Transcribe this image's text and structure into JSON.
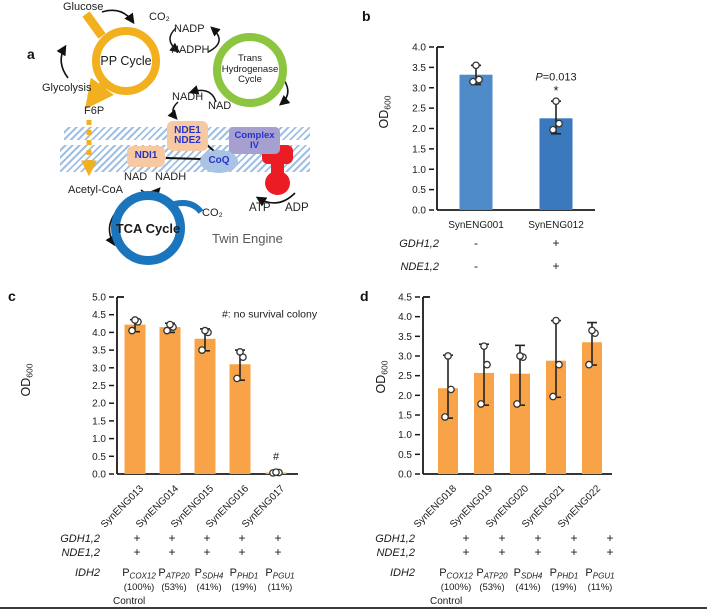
{
  "figure": {
    "panels": {
      "a": "a",
      "b": "b",
      "c": "c",
      "d": "d"
    },
    "bottom_rule_color": "#3a3a3a"
  },
  "diagram": {
    "labels": {
      "glucose": "Glucose",
      "co2_top": "CO₂",
      "pp_cycle": "PP Cycle",
      "glycolysis": "Glycolysis",
      "f6p": "F6P",
      "nadp": "NADP",
      "nadph": "NADPH",
      "trans_line1": "Trans",
      "trans_line2": "Hydrogenase",
      "trans_line3": "Cycle",
      "nadh_mid": "NADH",
      "nad_mid": "NAD",
      "nde1": "NDE1",
      "nde2": "NDE2",
      "ndi1": "NDI1",
      "complex_line1": "Complex",
      "complex_line2": "IV",
      "coq": "CoQ",
      "nad_tca": "NAD",
      "nadh_tca": "NADH",
      "acetyl_coa": "Acetyl-CoA",
      "tca_cycle": "TCA Cycle",
      "co2_tca": "CO₂",
      "atp": "ATP",
      "adp": "ADP",
      "twin_engine": "Twin Engine"
    },
    "colors": {
      "pp_ring": "#F2B01E",
      "green_ring": "#8CC540",
      "tca_ring": "#1B75BC",
      "peach_box": "#F6C9A2",
      "purple_box": "#A5A0D0",
      "coq_fill": "#A9C3E4",
      "box_text": "#2833CC",
      "atp_synthase_red": "#EC1C24",
      "membrane_hatch": "#9FC0E4",
      "twin_engine_text": "#58595B"
    }
  },
  "chart_data": [
    {
      "id": "panel-b",
      "type": "bar",
      "title": "",
      "ylabel": "OD",
      "ylabel_sub": "600",
      "ylim": [
        0,
        4.0
      ],
      "ytick_step": 0.5,
      "grid": false,
      "categories": [
        "SynENG001",
        "SynENG012"
      ],
      "values": [
        3.32,
        2.25
      ],
      "bar_colors": [
        "#4E8BC8",
        "#3A79BE"
      ],
      "points": [
        [
          3.15,
          3.2,
          3.55
        ],
        [
          1.97,
          2.12,
          2.67
        ]
      ],
      "error_low": [
        3.08,
        1.87
      ],
      "error_high": [
        3.55,
        2.67
      ],
      "annotations": [
        {
          "text": "P=0.013",
          "italic_first": true,
          "bar_index": 1,
          "y": 3.18,
          "size": 11
        },
        {
          "text": "*",
          "bar_index": 1,
          "y": 2.82,
          "size": 13
        }
      ],
      "genotype_rows": [
        {
          "label": "GDH1,2",
          "values": [
            "-",
            "+"
          ]
        },
        {
          "label": "NDE1,2",
          "values": [
            "-",
            "+"
          ]
        }
      ]
    },
    {
      "id": "panel-c",
      "type": "bar",
      "title": "",
      "ylabel": "OD",
      "ylabel_sub": "600",
      "ylim": [
        0,
        5.0
      ],
      "ytick_step": 0.5,
      "grid": false,
      "categories": [
        "SynENG013",
        "SynENG014",
        "SynENG015",
        "SynENG016",
        "SynENG017"
      ],
      "values": [
        4.22,
        4.15,
        3.82,
        3.1,
        0.04
      ],
      "bar_colors": [
        "#F8A347",
        "#F8A347",
        "#F8A347",
        "#F8A347",
        "#F8A347"
      ],
      "points": [
        [
          4.05,
          4.3,
          4.35
        ],
        [
          4.05,
          4.15,
          4.22
        ],
        [
          3.5,
          4.0,
          4.05
        ],
        [
          2.7,
          3.3,
          3.45
        ],
        [
          0.03,
          0.04,
          0.05
        ]
      ],
      "error_low": [
        4.02,
        4.0,
        3.48,
        2.65,
        null
      ],
      "error_high": [
        4.36,
        4.26,
        4.1,
        3.5,
        null
      ],
      "annotations": [
        {
          "text": "#: no survival colony",
          "x_frac": 0.58,
          "y": 4.42,
          "anchor": "start",
          "size": 10.5
        },
        {
          "text": "#",
          "bar_index": 4,
          "y": 0.4,
          "size": 11
        }
      ],
      "genotype_rows": [
        {
          "label": "GDH1,2",
          "values": [
            "+",
            "+",
            "+",
            "+",
            "+"
          ]
        },
        {
          "label": "NDE1,2",
          "values": [
            "+",
            "+",
            "+",
            "+",
            "+"
          ]
        },
        {
          "label": "IDH2",
          "promoters": [
            {
              "base": "P",
              "sub": "COX12",
              "pct": "(100%)",
              "note": "Control"
            },
            {
              "base": "P",
              "sub": "ATP20",
              "pct": "(53%)"
            },
            {
              "base": "P",
              "sub": "SDH4",
              "pct": "(41%)"
            },
            {
              "base": "P",
              "sub": "PHD1",
              "pct": "(19%)"
            },
            {
              "base": "P",
              "sub": "PGU1",
              "pct": "(11%)"
            }
          ]
        }
      ]
    },
    {
      "id": "panel-d",
      "type": "bar",
      "title": "",
      "ylabel": "OD",
      "ylabel_sub": "600",
      "ylim": [
        0,
        4.5
      ],
      "ytick_step": 0.5,
      "grid": false,
      "categories": [
        "SynENG018",
        "SynENG019",
        "SynENG020",
        "SynENG021",
        "SynENG022"
      ],
      "values": [
        2.18,
        2.57,
        2.55,
        2.88,
        3.35
      ],
      "bar_colors": [
        "#F8A347",
        "#F8A347",
        "#F8A347",
        "#F8A347",
        "#F8A347"
      ],
      "points": [
        [
          1.45,
          2.15,
          3.0
        ],
        [
          1.78,
          2.78,
          3.25
        ],
        [
          1.78,
          2.97,
          3.0
        ],
        [
          1.97,
          2.78,
          3.9
        ],
        [
          2.78,
          3.58,
          3.65
        ]
      ],
      "error_low": [
        1.42,
        1.75,
        1.75,
        1.95,
        2.77
      ],
      "error_high": [
        3.02,
        3.3,
        3.27,
        3.9,
        3.85
      ],
      "annotations": [],
      "genotype_rows": [
        {
          "label": "GDH1,2",
          "values": [
            "+",
            "+",
            "+",
            "+",
            "+"
          ]
        },
        {
          "label": "NDE1,2",
          "values": [
            "+",
            "+",
            "+",
            "+",
            "+"
          ]
        },
        {
          "label": "IDH2",
          "promoters": [
            {
              "base": "P",
              "sub": "COX12",
              "pct": "(100%)",
              "note": "Control"
            },
            {
              "base": "P",
              "sub": "ATP20",
              "pct": "(53%)"
            },
            {
              "base": "P",
              "sub": "SDH4",
              "pct": "(41%)"
            },
            {
              "base": "P",
              "sub": "PHD1",
              "pct": "(19%)"
            },
            {
              "base": "P",
              "sub": "PGU1",
              "pct": "(11%)"
            }
          ]
        }
      ]
    }
  ]
}
